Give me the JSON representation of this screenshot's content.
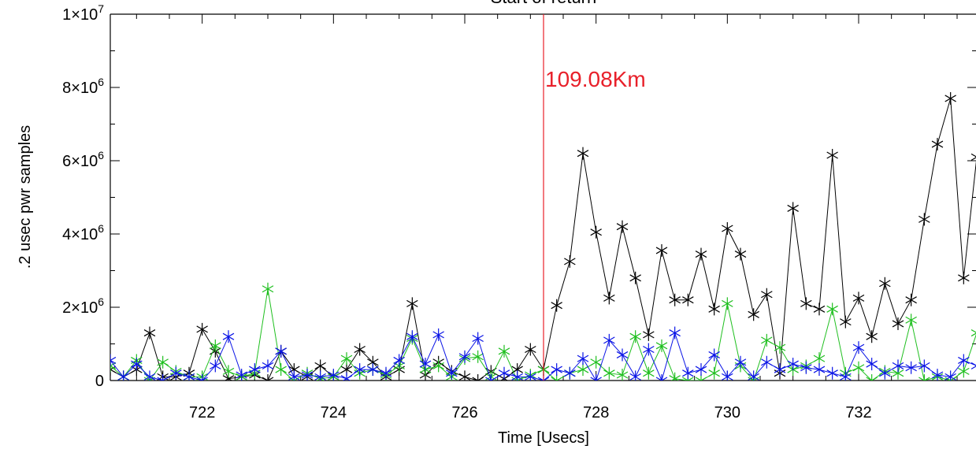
{
  "chart_data": {
    "type": "line",
    "title": "Start of return",
    "xlabel": "Time [Usecs]",
    "ylabel": ".2 usec pwr samples",
    "xlim": [
      720.6,
      733.8
    ],
    "ylim": [
      0,
      10000000
    ],
    "x_ticks": [
      722,
      724,
      726,
      728,
      730,
      732
    ],
    "y_ticks": [
      {
        "value": 0,
        "mantissa": "0",
        "exponent": ""
      },
      {
        "value": 2000000,
        "mantissa": "2×10",
        "exponent": "6"
      },
      {
        "value": 4000000,
        "mantissa": "4×10",
        "exponent": "6"
      },
      {
        "value": 6000000,
        "mantissa": "6×10",
        "exponent": "6"
      },
      {
        "value": 8000000,
        "mantissa": "8×10",
        "exponent": "6"
      },
      {
        "value": 10000000,
        "mantissa": "1×10",
        "exponent": "7"
      }
    ],
    "marker": "asterisk",
    "annotation": {
      "x": 727.2,
      "label": "109.08Km",
      "color": "#e8202a"
    },
    "series": [
      {
        "color": "#000000",
        "x": [
          720.6,
          720.8,
          721.0,
          721.2,
          721.4,
          721.6,
          721.8,
          722.0,
          722.2,
          722.4,
          722.6,
          722.8,
          723.0,
          723.2,
          723.4,
          723.6,
          723.8,
          724.0,
          724.2,
          724.4,
          724.6,
          724.8,
          725.0,
          725.2,
          725.4,
          725.6,
          725.8,
          726.0,
          726.2,
          726.4,
          726.6,
          726.8,
          727.0,
          727.2,
          727.4,
          727.6,
          727.8,
          728.0,
          728.2,
          728.4,
          728.6,
          728.8,
          729.0,
          729.2,
          729.4,
          729.6,
          729.8,
          730.0,
          730.2,
          730.4,
          730.6,
          730.8,
          731.0,
          731.2,
          731.4,
          731.6,
          731.8,
          732.0,
          732.2,
          732.4,
          732.6,
          732.8,
          733.0,
          733.2,
          733.4,
          733.6,
          733.8
        ],
        "values": [
          300000,
          100000,
          300000,
          1300000,
          100000,
          100000,
          200000,
          1400000,
          800000,
          50000,
          100000,
          150000,
          0,
          800000,
          300000,
          100000,
          400000,
          100000,
          300000,
          850000,
          500000,
          100000,
          300000,
          2100000,
          150000,
          500000,
          250000,
          100000,
          0,
          250000,
          50000,
          300000,
          850000,
          300000,
          2050000,
          3250000,
          6200000,
          4050000,
          2250000,
          4200000,
          2800000,
          1250000,
          3550000,
          2200000,
          2200000,
          3450000,
          1950000,
          4150000,
          3450000,
          1800000,
          2350000,
          200000,
          4700000,
          2100000,
          1950000,
          6150000,
          1600000,
          2250000,
          1200000,
          2650000,
          1550000,
          2200000,
          4400000,
          6450000,
          7700000,
          2800000,
          6100000
        ]
      },
      {
        "color": "#1fbf1f",
        "x": [
          720.6,
          720.8,
          721.0,
          721.2,
          721.4,
          721.6,
          721.8,
          722.0,
          722.2,
          722.4,
          722.6,
          722.8,
          723.0,
          723.2,
          723.4,
          723.6,
          723.8,
          724.0,
          724.2,
          724.4,
          724.6,
          724.8,
          725.0,
          725.2,
          725.4,
          725.6,
          725.8,
          726.0,
          726.2,
          726.4,
          726.6,
          726.8,
          727.0,
          727.2,
          727.4,
          727.6,
          727.8,
          728.0,
          728.2,
          728.4,
          728.6,
          728.8,
          729.0,
          729.2,
          729.4,
          729.6,
          729.8,
          730.0,
          730.2,
          730.4,
          730.6,
          730.8,
          731.0,
          731.2,
          731.4,
          731.6,
          731.8,
          732.0,
          732.2,
          732.4,
          732.6,
          732.8,
          733.0,
          733.2,
          733.4,
          733.6,
          733.8
        ],
        "values": [
          400000,
          100000,
          550000,
          0,
          500000,
          250000,
          100000,
          100000,
          950000,
          250000,
          100000,
          200000,
          2500000,
          300000,
          0,
          200000,
          50000,
          100000,
          600000,
          200000,
          300000,
          150000,
          400000,
          1150000,
          300000,
          400000,
          100000,
          600000,
          650000,
          100000,
          800000,
          0,
          150000,
          300000,
          0,
          200000,
          300000,
          500000,
          200000,
          150000,
          1200000,
          200000,
          950000,
          50000,
          0,
          0,
          200000,
          2100000,
          400000,
          0,
          1100000,
          900000,
          300000,
          400000,
          600000,
          1950000,
          200000,
          350000,
          0,
          250000,
          200000,
          1650000,
          0,
          100000,
          0,
          250000,
          1300000
        ]
      },
      {
        "color": "#0a14e6",
        "x": [
          720.6,
          720.8,
          721.0,
          721.2,
          721.4,
          721.6,
          721.8,
          722.0,
          722.2,
          722.4,
          722.6,
          722.8,
          723.0,
          723.2,
          723.4,
          723.6,
          723.8,
          724.0,
          724.2,
          724.4,
          724.6,
          724.8,
          725.0,
          725.2,
          725.4,
          725.6,
          725.8,
          726.0,
          726.2,
          726.4,
          726.6,
          726.8,
          727.0,
          727.2,
          727.4,
          727.6,
          727.8,
          728.0,
          728.2,
          728.4,
          728.6,
          728.8,
          729.0,
          729.2,
          729.4,
          729.6,
          729.8,
          730.0,
          730.2,
          730.4,
          730.6,
          730.8,
          731.0,
          731.2,
          731.4,
          731.6,
          731.8,
          732.0,
          732.2,
          732.4,
          732.6,
          732.8,
          733.0,
          733.2,
          733.4,
          733.6,
          733.8
        ],
        "values": [
          550000,
          100000,
          450000,
          100000,
          0,
          200000,
          100000,
          0,
          400000,
          1200000,
          150000,
          300000,
          400000,
          800000,
          100000,
          150000,
          100000,
          150000,
          50000,
          300000,
          300000,
          200000,
          550000,
          1200000,
          450000,
          1250000,
          200000,
          650000,
          1150000,
          0,
          200000,
          100000,
          100000,
          0,
          300000,
          200000,
          600000,
          0,
          1100000,
          700000,
          100000,
          850000,
          0,
          1300000,
          200000,
          300000,
          700000,
          100000,
          500000,
          100000,
          500000,
          300000,
          450000,
          350000,
          300000,
          200000,
          100000,
          900000,
          450000,
          200000,
          400000,
          350000,
          400000,
          150000,
          100000,
          550000,
          400000
        ]
      }
    ]
  }
}
